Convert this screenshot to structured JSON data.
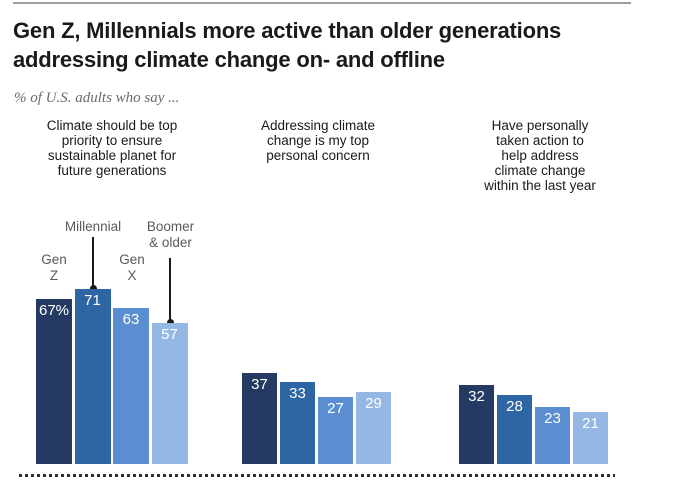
{
  "header": {
    "title": "Gen Z, Millennials more active than older generations\naddressing climate change on- and offline",
    "subtitle": "% of U.S. adults who say ..."
  },
  "legend": {
    "gen_z": "Gen\nZ",
    "millennial": "Millennial",
    "gen_x": "Gen\nX",
    "boomer": "Boomer\n& older"
  },
  "colors": {
    "gen_z": "#243a62",
    "millennial": "#2e66a3",
    "gen_x": "#5b8ed0",
    "boomer": "#94b7e4",
    "title_text": "#1a1a1a",
    "subtitle_text": "#6b6b6b",
    "legend_text": "#5a5a5a"
  },
  "chart_data": {
    "type": "bar",
    "title": "Gen Z, Millennials more active than older generations addressing climate change on- and offline",
    "subtitle": "% of U.S. adults who say ...",
    "unit": "%",
    "categories": [
      "Gen Z",
      "Millennial",
      "Gen X",
      "Boomer & older"
    ],
    "series_colors": [
      "#243a62",
      "#2e66a3",
      "#5b8ed0",
      "#94b7e4"
    ],
    "groups": [
      {
        "label": "Climate should be top priority to ensure sustainable planet for future generations",
        "label_lines": "Climate should be top\npriority to ensure\nsustainable planet for\nfuture generations",
        "values": [
          67,
          71,
          63,
          57
        ],
        "value_labels": [
          "67%",
          "71",
          "63",
          "57"
        ]
      },
      {
        "label": "Addressing climate change is my top personal concern",
        "label_lines": "Addressing climate\nchange is my top\npersonal concern",
        "values": [
          37,
          33,
          27,
          29
        ],
        "value_labels": [
          "37",
          "33",
          "27",
          "29"
        ]
      },
      {
        "label": "Have personally taken action to help address climate change within the last year",
        "label_lines": "Have personally\ntaken action to\nhelp address\nclimate change\nwithin the last year",
        "values": [
          32,
          28,
          23,
          21
        ],
        "value_labels": [
          "32",
          "28",
          "23",
          "21"
        ]
      }
    ],
    "ylim": [
      0,
      75
    ],
    "grid": false,
    "legend_position": "callouts-above-first-group",
    "value_labels_position": "inside-top"
  }
}
